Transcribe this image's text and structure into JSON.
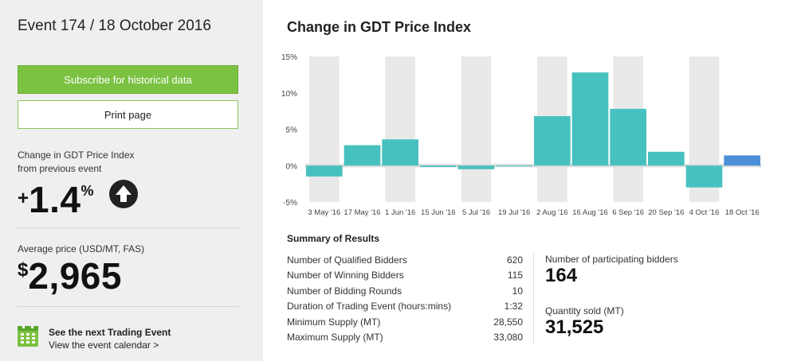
{
  "event": {
    "title": "Event 174 / 18 October 2016"
  },
  "buttons": {
    "subscribe": "Subscribe for historical data",
    "print": "Print page"
  },
  "price_change": {
    "label_line1": "Change in GDT Price Index",
    "label_line2": "from previous event",
    "sign": "+",
    "value": "1.4",
    "unit": "%"
  },
  "average_price": {
    "label": "Average price (USD/MT, FAS)",
    "currency": "$",
    "value": "2,965"
  },
  "next_event": {
    "title": "See the next Trading Event",
    "link": "View the event calendar >"
  },
  "chart_data": {
    "type": "bar",
    "title": "Change in GDT Price Index",
    "categories": [
      "3 May '16",
      "17 May '16",
      "1 Jun '16",
      "15 Jun '16",
      "5 Jul '16",
      "19 Jul '16",
      "2 Aug '16",
      "16 Aug '16",
      "6 Sep '16",
      "20 Sep '16",
      "4 Oct '16",
      "18 Oct '16"
    ],
    "values": [
      -1.5,
      2.8,
      3.6,
      -0.2,
      -0.5,
      -0.1,
      6.8,
      12.8,
      7.8,
      1.9,
      -3.0,
      1.4
    ],
    "ylim": [
      -5,
      15
    ],
    "yticks": [
      "-5%",
      "0%",
      "5%",
      "10%",
      "15%"
    ],
    "ytick_values": [
      -5,
      0,
      5,
      10,
      15
    ],
    "colors": {
      "bar": "#47c1bf",
      "highlight": "#4a8fd8",
      "band": "#e9e9e9"
    }
  },
  "summary": {
    "title": "Summary of Results",
    "rows": [
      {
        "label": "Number of Qualified Bidders",
        "value": "620"
      },
      {
        "label": "Number of Winning Bidders",
        "value": "115"
      },
      {
        "label": "Number of Bidding Rounds",
        "value": "10"
      },
      {
        "label": "Duration of Trading Event (hours:mins)",
        "value": "1:32"
      },
      {
        "label": "Minimum Supply (MT)",
        "value": "28,550"
      },
      {
        "label": "Maximum Supply (MT)",
        "value": "33,080"
      }
    ],
    "participating": {
      "label": "Number of participating bidders",
      "value": "164"
    },
    "quantity": {
      "label": "Quantity sold (MT)",
      "value": "31,525"
    }
  }
}
